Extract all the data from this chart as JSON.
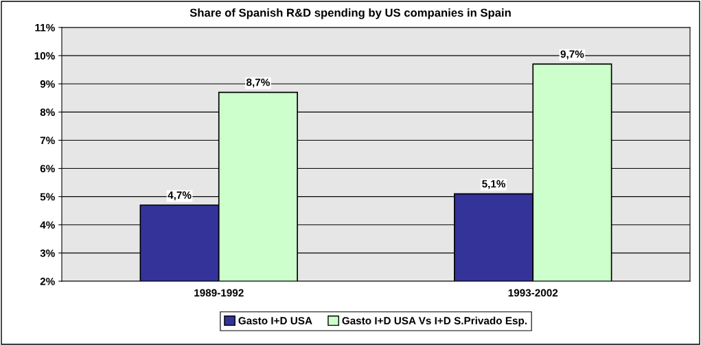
{
  "chart_data": {
    "type": "bar",
    "title": "Share of Spanish R&D spending by US companies in Spain",
    "categories": [
      "1989-1992",
      "1993-2002"
    ],
    "series": [
      {
        "name": "Gasto I+D USA",
        "color": "#333399",
        "values": [
          4.7,
          5.1
        ],
        "value_labels": [
          "4,7%",
          "5,1%"
        ]
      },
      {
        "name": "Gasto I+D USA Vs I+D S.Privado Esp.",
        "color": "#ccffcc",
        "values": [
          8.7,
          9.7
        ],
        "value_labels": [
          "8,7%",
          "9,7%"
        ]
      }
    ],
    "ylim": [
      2,
      11
    ],
    "yticks": [
      {
        "value": 2,
        "label": "2%"
      },
      {
        "value": 3,
        "label": "3%"
      },
      {
        "value": 4,
        "label": "4%"
      },
      {
        "value": 5,
        "label": "5%"
      },
      {
        "value": 6,
        "label": "6%"
      },
      {
        "value": 7,
        "label": "7%"
      },
      {
        "value": 8,
        "label": "8%"
      },
      {
        "value": 9,
        "label": "9%"
      },
      {
        "value": 10,
        "label": "10%"
      },
      {
        "value": 11,
        "label": "11%"
      }
    ],
    "grid": "y",
    "legend": "bottom"
  }
}
